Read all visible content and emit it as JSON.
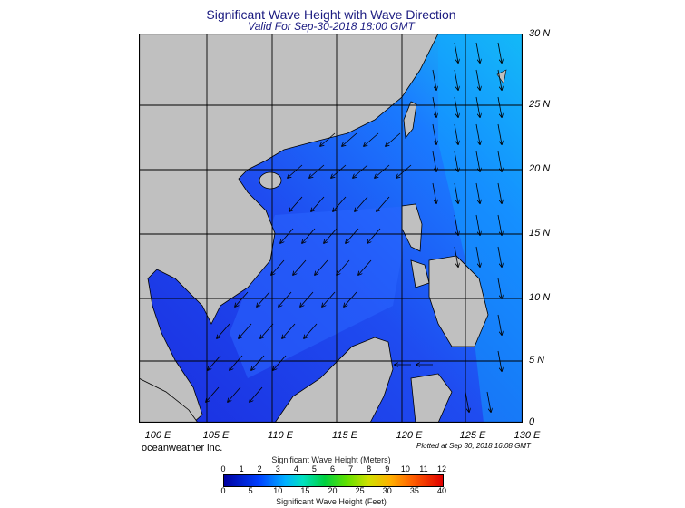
{
  "title": "Significant Wave Height with Wave Direction",
  "subtitle": "Valid For Sep-30-2018 18:00 GMT",
  "lat_labels": [
    "30 N",
    "25 N",
    "20 N",
    "15 N",
    "10 N",
    "5 N",
    "0"
  ],
  "lon_labels": [
    "100 E",
    "105 E",
    "110 E",
    "115 E",
    "120 E",
    "125 E",
    "130 E"
  ],
  "brand": "oceanweather inc.",
  "plotted": "Plotted at Sep 30, 2018 16:08 GMT",
  "colorbar": {
    "title_meters": "Significant Wave Height (Meters)",
    "title_feet": "Significant Wave Height (Feet)",
    "meter_ticks": [
      "0",
      "1",
      "2",
      "3",
      "4",
      "5",
      "6",
      "7",
      "8",
      "9",
      "10",
      "11",
      "12"
    ],
    "feet_ticks": [
      "0",
      "5",
      "10",
      "15",
      "20",
      "25",
      "30",
      "35",
      "40"
    ]
  },
  "colors": {
    "land": "#c0c0c0",
    "water_low": "#1a2ee0",
    "water_mid": "#1f6bff",
    "water_high": "#19c8ff"
  }
}
